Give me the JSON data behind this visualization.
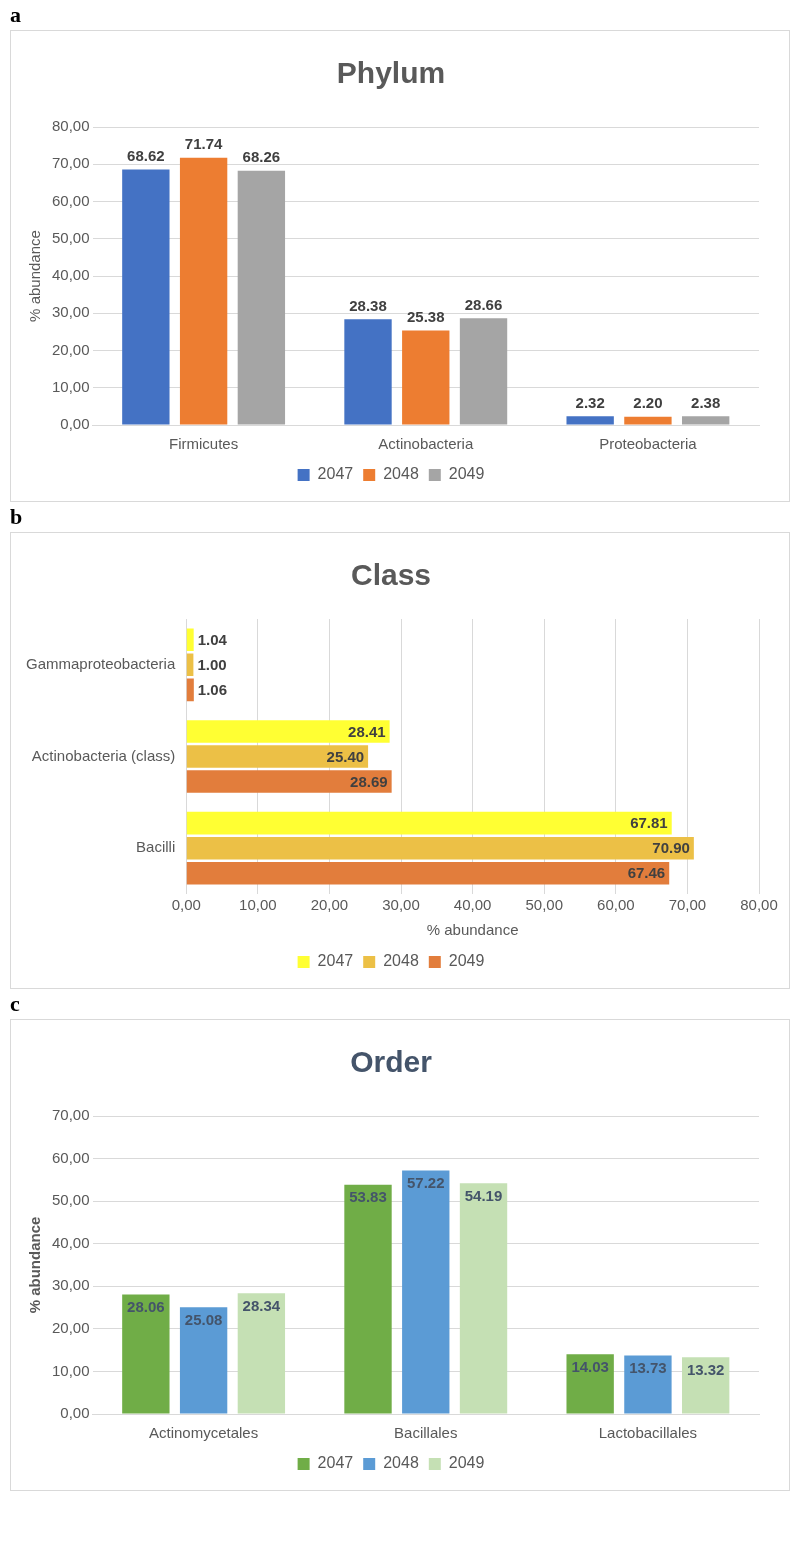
{
  "chart_data": [
    {
      "type": "bar",
      "title": "Phylum",
      "ylabel": "% abundance",
      "annotations": [
        "a"
      ],
      "categories": [
        "Firmicutes",
        "Actinobacteria",
        "Proteobacteria"
      ],
      "series": [
        {
          "name": "2047",
          "color": "#4472c4",
          "values": [
            68.62,
            28.38,
            2.32
          ],
          "value_labels": [
            "68.62",
            "28.38",
            "2.32"
          ]
        },
        {
          "name": "2048",
          "color": "#ed7d31",
          "values": [
            71.74,
            25.38,
            2.2
          ],
          "value_labels": [
            "71.74",
            "25.38",
            "2.20"
          ]
        },
        {
          "name": "2049",
          "color": "#a5a5a5",
          "values": [
            68.26,
            28.66,
            2.38
          ],
          "value_labels": [
            "68.26",
            "28.66",
            "2.38"
          ]
        }
      ],
      "ylim": [
        0,
        80
      ],
      "yticks": [
        {
          "value": 0,
          "label": "0,00"
        },
        {
          "value": 10,
          "label": "10,00"
        },
        {
          "value": 20,
          "label": "20,00"
        },
        {
          "value": 30,
          "label": "30,00"
        },
        {
          "value": 40,
          "label": "40,00"
        },
        {
          "value": 50,
          "label": "50,00"
        },
        {
          "value": 60,
          "label": "60,00"
        },
        {
          "value": 70,
          "label": "70,00"
        },
        {
          "value": 80,
          "label": "80,00"
        }
      ],
      "grid": "y",
      "legend": "bottom"
    },
    {
      "type": "bar",
      "orientation": "horizontal",
      "title": "Class",
      "xlabel": "% abundance",
      "annotations": [
        "b"
      ],
      "categories": [
        "Gammaproteobacteria",
        "Actinobacteria (class)",
        "Bacilli"
      ],
      "series": [
        {
          "name": "2047",
          "color": "#ffff33",
          "values": [
            1.04,
            28.41,
            67.81
          ],
          "value_labels": [
            "1.04",
            "28.41",
            "67.81"
          ]
        },
        {
          "name": "2048",
          "color": "#ecc046",
          "values": [
            1.0,
            25.4,
            70.9
          ],
          "value_labels": [
            "1.00",
            "25.40",
            "70.90"
          ]
        },
        {
          "name": "2049",
          "color": "#e27d3c",
          "values": [
            1.06,
            28.69,
            67.46
          ],
          "value_labels": [
            "1.06",
            "28.69",
            "67.46"
          ]
        }
      ],
      "xlim": [
        0,
        80
      ],
      "xticks": [
        {
          "value": 0,
          "label": "0,00"
        },
        {
          "value": 10,
          "label": "10,00"
        },
        {
          "value": 20,
          "label": "20,00"
        },
        {
          "value": 30,
          "label": "30,00"
        },
        {
          "value": 40,
          "label": "40,00"
        },
        {
          "value": 50,
          "label": "50,00"
        },
        {
          "value": 60,
          "label": "60,00"
        },
        {
          "value": 70,
          "label": "70,00"
        },
        {
          "value": 80,
          "label": "80,00"
        }
      ],
      "grid": "x",
      "legend": "bottom"
    },
    {
      "type": "bar",
      "title": "Order",
      "ylabel": "% abundance",
      "annotations": [
        "c"
      ],
      "categories": [
        "Actinomycetales",
        "Bacillales",
        "Lactobacillales"
      ],
      "series": [
        {
          "name": "2047",
          "color": "#70ad47",
          "values": [
            28.06,
            53.83,
            14.03
          ],
          "value_labels": [
            "28.06",
            "53.83",
            "14.03"
          ]
        },
        {
          "name": "2048",
          "color": "#5b9bd5",
          "values": [
            25.08,
            57.22,
            13.73
          ],
          "value_labels": [
            "25.08",
            "57.22",
            "13.73"
          ]
        },
        {
          "name": "2049",
          "color": "#c5e0b4",
          "values": [
            28.34,
            54.19,
            13.32
          ],
          "value_labels": [
            "28.34",
            "54.19",
            "13.32"
          ]
        }
      ],
      "ylim": [
        0,
        70
      ],
      "yticks": [
        {
          "value": 0,
          "label": "0,00"
        },
        {
          "value": 10,
          "label": "10,00"
        },
        {
          "value": 20,
          "label": "20,00"
        },
        {
          "value": 30,
          "label": "30,00"
        },
        {
          "value": 40,
          "label": "40,00"
        },
        {
          "value": 50,
          "label": "50,00"
        },
        {
          "value": 60,
          "label": "60,00"
        },
        {
          "value": 70,
          "label": "70,00"
        }
      ],
      "grid": "y",
      "legend": "bottom"
    }
  ]
}
